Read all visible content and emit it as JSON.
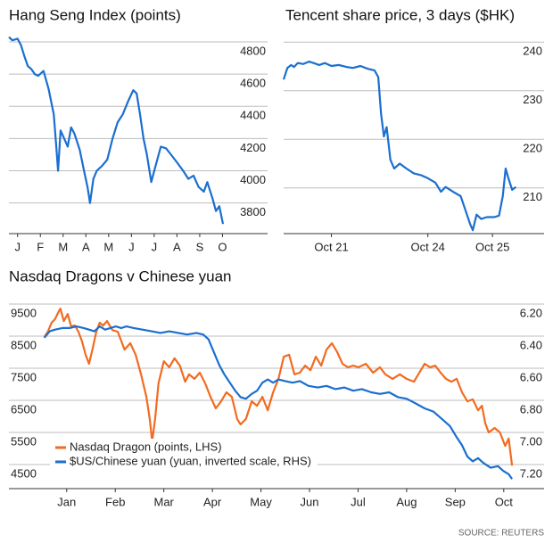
{
  "chart_data": [
    {
      "type": "line",
      "title": "Hang Seng Index (points)",
      "xlim": [
        -0.38,
        10.98
      ],
      "xticks": [
        {
          "value": 0,
          "label": "J"
        },
        {
          "value": 1,
          "label": "F"
        },
        {
          "value": 2,
          "label": "M"
        },
        {
          "value": 3,
          "label": "A"
        },
        {
          "value": 4,
          "label": "M"
        },
        {
          "value": 5,
          "label": "J"
        },
        {
          "value": 6,
          "label": "J"
        },
        {
          "value": 7,
          "label": "A"
        },
        {
          "value": 8,
          "label": "S"
        },
        {
          "value": 9,
          "label": "O"
        }
      ],
      "ylim": [
        3610,
        4850
      ],
      "yticks": [
        3800,
        4000,
        4200,
        4400,
        4600,
        4800
      ],
      "grid": true,
      "series": [
        {
          "color": "#1a6fcf",
          "x": [
            -0.38,
            -0.23,
            0,
            0.15,
            0.3,
            0.45,
            0.61,
            0.76,
            0.91,
            1.14,
            1.36,
            1.59,
            1.7,
            1.78,
            1.89,
            2.05,
            2.2,
            2.35,
            2.5,
            2.73,
            2.92,
            3.07,
            3.18,
            3.33,
            3.48,
            3.71,
            3.94,
            4.17,
            4.39,
            4.62,
            4.85,
            5.08,
            5.23,
            5.38,
            5.53,
            5.68,
            5.87,
            6.06,
            6.29,
            6.52,
            6.74,
            7.01,
            7.27,
            7.5,
            7.73,
            7.95,
            8.18,
            8.33,
            8.56,
            8.71,
            8.86,
            9.02
          ],
          "values": [
            4830,
            4810,
            4820,
            4780,
            4710,
            4650,
            4630,
            4600,
            4590,
            4620,
            4510,
            4350,
            4150,
            4000,
            4250,
            4200,
            4150,
            4270,
            4230,
            4130,
            4000,
            3900,
            3800,
            3950,
            4000,
            4030,
            4070,
            4200,
            4300,
            4350,
            4430,
            4500,
            4480,
            4350,
            4200,
            4100,
            3930,
            4030,
            4150,
            4140,
            4100,
            4050,
            4000,
            3950,
            3970,
            3900,
            3870,
            3930,
            3830,
            3750,
            3780,
            3670
          ]
        }
      ]
    },
    {
      "type": "line",
      "title": "Tencent share price, 3 days ($HK)",
      "xlim": [
        0,
        2.5
      ],
      "xticks": [
        {
          "value": 0.51,
          "label": "Oct 21"
        },
        {
          "value": 1.54,
          "label": "Oct 24"
        },
        {
          "value": 2.23,
          "label": "Oct 25"
        }
      ],
      "ylim": [
        200.6,
        241.7
      ],
      "yticks": [
        210,
        220,
        230,
        240
      ],
      "grid": true,
      "series": [
        {
          "color": "#1a6fcf",
          "x": [
            0,
            0.04,
            0.08,
            0.11,
            0.15,
            0.21,
            0.27,
            0.32,
            0.38,
            0.44,
            0.51,
            0.59,
            0.67,
            0.74,
            0.82,
            0.9,
            0.97,
            1.01,
            1.04,
            1.07,
            1.1,
            1.14,
            1.18,
            1.24,
            1.31,
            1.39,
            1.47,
            1.54,
            1.62,
            1.68,
            1.73,
            1.81,
            1.89,
            1.94,
            1.99,
            2.02,
            2.06,
            2.11,
            2.17,
            2.25,
            2.3,
            2.34,
            2.37,
            2.4,
            2.44,
            2.48
          ],
          "values": [
            232.3,
            234.7,
            235.3,
            234.9,
            235.7,
            235.5,
            236,
            235.7,
            235.3,
            235.7,
            235.1,
            235.3,
            234.9,
            234.7,
            235.1,
            234.5,
            234.2,
            232.8,
            225.3,
            220.6,
            222.5,
            215.8,
            214,
            215,
            214,
            213,
            212.6,
            212,
            211.1,
            209.2,
            210.2,
            209.2,
            208.3,
            205.5,
            202.6,
            201.3,
            204.5,
            203.6,
            204,
            204,
            204.3,
            208.3,
            214,
            212,
            209.6,
            210.2
          ]
        }
      ]
    },
    {
      "type": "line",
      "title": "Nasdaq Dragons v Chinese yuan",
      "xlim": [
        -1.19,
        9.83
      ],
      "xticks": [
        {
          "value": 0,
          "label": "Jan"
        },
        {
          "value": 1,
          "label": "Feb"
        },
        {
          "value": 2,
          "label": "Mar"
        },
        {
          "value": 3,
          "label": "Apr"
        },
        {
          "value": 4,
          "label": "May"
        },
        {
          "value": 5,
          "label": "Jun"
        },
        {
          "value": 6,
          "label": "Jul"
        },
        {
          "value": 7,
          "label": "Aug"
        },
        {
          "value": 8,
          "label": "Sep"
        },
        {
          "value": 9,
          "label": "Oct"
        }
      ],
      "ylim": [
        3750,
        9667
      ],
      "yticks": [
        4500,
        5500,
        6500,
        7500,
        8500,
        9500
      ],
      "y2lim": [
        7.35,
        6.167
      ],
      "y2ticks": [
        {
          "value": 7.2,
          "label": "7.20"
        },
        {
          "value": 7.0,
          "label": "7.00"
        },
        {
          "value": 6.8,
          "label": "6.80"
        },
        {
          "value": 6.6,
          "label": "6.60"
        },
        {
          "value": 6.4,
          "label": "6.40"
        },
        {
          "value": 6.2,
          "label": "6.20"
        }
      ],
      "grid": true,
      "legend": "lower left",
      "series": [
        {
          "name": "Nasdaq Dragon (points, LHS)",
          "color": "#f26b21",
          "x": [
            -0.46,
            -0.39,
            -0.31,
            -0.24,
            -0.17,
            -0.13,
            -0.06,
            0.02,
            0.09,
            0.17,
            0.24,
            0.31,
            0.39,
            0.46,
            0.53,
            0.61,
            0.68,
            0.75,
            0.83,
            0.94,
            1.05,
            1.12,
            1.19,
            1.31,
            1.42,
            1.53,
            1.64,
            1.71,
            1.76,
            1.82,
            1.89,
            2.0,
            2.11,
            2.22,
            2.33,
            2.44,
            2.52,
            2.63,
            2.74,
            2.85,
            2.96,
            3.07,
            3.18,
            3.29,
            3.4,
            3.51,
            3.58,
            3.69,
            3.81,
            3.92,
            4.03,
            4.14,
            4.25,
            4.36,
            4.47,
            4.58,
            4.69,
            4.8,
            4.91,
            5.02,
            5.13,
            5.24,
            5.35,
            5.46,
            5.57,
            5.68,
            5.79,
            5.9,
            6.01,
            6.16,
            6.31,
            6.45,
            6.56,
            6.71,
            6.86,
            7.0,
            7.15,
            7.26,
            7.37,
            7.48,
            7.59,
            7.7,
            7.81,
            7.92,
            8.03,
            8.14,
            8.25,
            8.36,
            8.47,
            8.55,
            8.62,
            8.69,
            8.81,
            8.92,
            9.03,
            9.1,
            9.17
          ],
          "values": [
            8470,
            8640,
            8920,
            9030,
            9250,
            9360,
            8970,
            9190,
            8810,
            8830,
            8640,
            8360,
            7920,
            7640,
            8080,
            8640,
            8920,
            8830,
            8970,
            8690,
            8640,
            8360,
            8080,
            8280,
            7920,
            7310,
            6610,
            5920,
            5220,
            5920,
            7030,
            7720,
            7530,
            7810,
            7580,
            7080,
            7310,
            7170,
            7360,
            7030,
            6610,
            6250,
            6470,
            6750,
            6610,
            5920,
            5750,
            5920,
            6470,
            6330,
            6610,
            6190,
            6750,
            7170,
            7860,
            7920,
            7310,
            7360,
            7580,
            7440,
            7860,
            7580,
            8080,
            8280,
            8000,
            7640,
            7530,
            7580,
            7530,
            7640,
            7360,
            7530,
            7310,
            7170,
            7310,
            7170,
            7080,
            7360,
            7640,
            7530,
            7580,
            7360,
            7170,
            7080,
            7170,
            6750,
            6470,
            6530,
            6190,
            6330,
            5780,
            5500,
            5640,
            5500,
            5080,
            5310,
            4470
          ]
        },
        {
          "name": "$US/Chinese yuan (yuan, inverted scale, RHS)",
          "color": "#1a6fcf",
          "axis": "y2",
          "x": [
            -0.46,
            -0.35,
            -0.24,
            -0.09,
            0.06,
            0.2,
            0.35,
            0.46,
            0.57,
            0.68,
            0.79,
            0.9,
            1.01,
            1.12,
            1.23,
            1.38,
            1.56,
            1.75,
            1.93,
            2.11,
            2.3,
            2.48,
            2.67,
            2.81,
            2.92,
            3.03,
            3.14,
            3.25,
            3.36,
            3.47,
            3.58,
            3.69,
            3.81,
            3.92,
            4.03,
            4.14,
            4.25,
            4.36,
            4.5,
            4.65,
            4.8,
            4.98,
            5.17,
            5.35,
            5.53,
            5.72,
            5.9,
            6.08,
            6.27,
            6.45,
            6.64,
            6.82,
            7.0,
            7.19,
            7.37,
            7.55,
            7.74,
            7.89,
            8.03,
            8.14,
            8.25,
            8.36,
            8.47,
            8.58,
            8.73,
            8.88,
            8.99,
            9.1,
            9.17
          ],
          "values": [
            6.41,
            6.37,
            6.36,
            6.35,
            6.35,
            6.34,
            6.35,
            6.36,
            6.37,
            6.34,
            6.36,
            6.35,
            6.34,
            6.35,
            6.34,
            6.35,
            6.36,
            6.37,
            6.38,
            6.37,
            6.38,
            6.39,
            6.38,
            6.39,
            6.42,
            6.5,
            6.58,
            6.64,
            6.69,
            6.74,
            6.78,
            6.79,
            6.76,
            6.74,
            6.69,
            6.67,
            6.69,
            6.67,
            6.68,
            6.69,
            6.68,
            6.71,
            6.72,
            6.71,
            6.73,
            6.72,
            6.74,
            6.73,
            6.75,
            6.76,
            6.75,
            6.78,
            6.79,
            6.82,
            6.85,
            6.87,
            6.92,
            6.96,
            7.03,
            7.08,
            7.15,
            7.18,
            7.16,
            7.19,
            7.22,
            7.21,
            7.24,
            7.26,
            7.29
          ]
        }
      ]
    }
  ],
  "source": "SOURCE: REUTERS"
}
